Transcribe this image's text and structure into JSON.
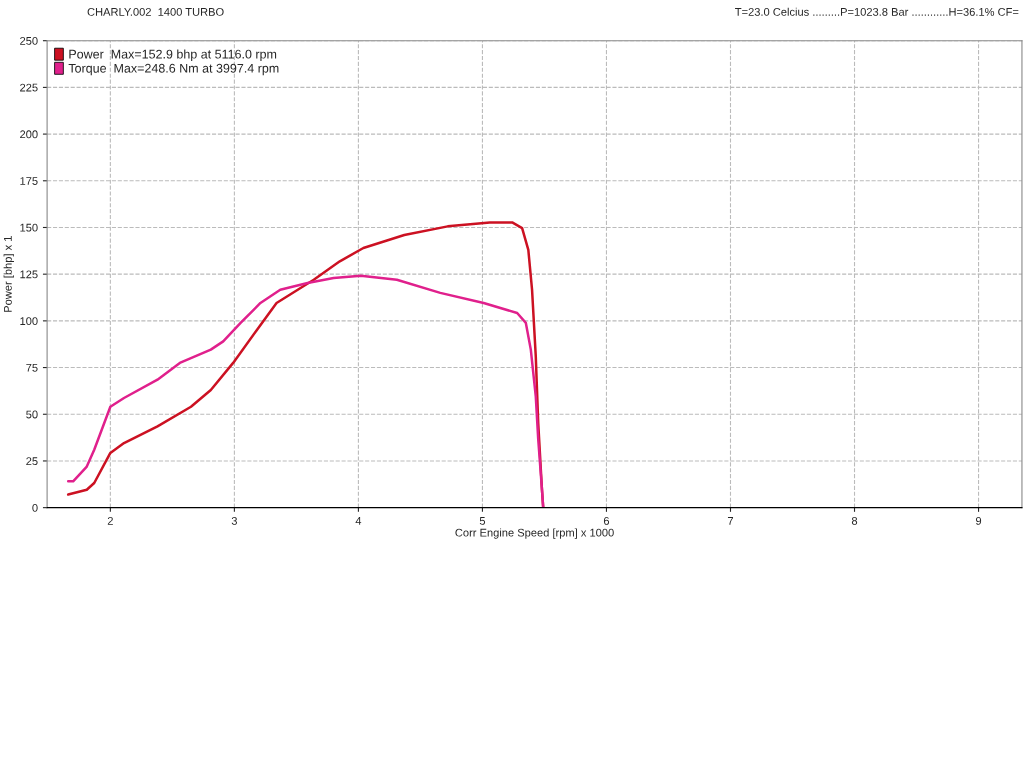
{
  "chart_data": {
    "type": "line",
    "xlabel": "Corr Engine Speed [rpm] x 1000",
    "ylabel": "Power [bhp] x 1",
    "annotations": [
      "CHARLY.002  1400 TURBO",
      "T=23.0 Celcius .........P=1023.8 Bar ............H=36.1% CF="
    ],
    "xlim": [
      1.49,
      9.35
    ],
    "xticks": [
      2,
      3,
      4,
      5,
      6,
      7,
      8,
      9
    ],
    "ylim": [
      0,
      250
    ],
    "yticks": [
      0,
      25,
      50,
      75,
      100,
      125,
      150,
      175,
      200,
      225,
      250
    ],
    "grid": true,
    "legend": "top left",
    "marker": "none",
    "line_style": "solid",
    "series": [
      {
        "name": "Power  Max=152.9 bhp at 5116.0 rpm",
        "color": "#cc1122",
        "x": [
          1.66,
          1.81,
          1.87,
          2.0,
          2.11,
          2.38,
          2.65,
          2.81,
          2.99,
          3.18,
          3.34,
          3.64,
          3.85,
          4.04,
          4.37,
          4.72,
          5.06,
          5.24,
          5.32,
          5.37,
          5.4,
          5.43,
          5.45,
          5.48,
          5.49
        ],
        "values": [
          7.0,
          9.6,
          13.2,
          29.3,
          34.6,
          43.5,
          54,
          63,
          77.5,
          95,
          109.6,
          122,
          131.9,
          139,
          146,
          150.6,
          152.7,
          152.7,
          149.7,
          138,
          116.7,
          81,
          45,
          9.6,
          0
        ]
      },
      {
        "name": "Torque  Max=248.6 Nm at 3997.4 rpm",
        "color": "#e0208c",
        "x": [
          1.66,
          1.7,
          1.81,
          1.87,
          2.0,
          2.11,
          2.38,
          2.56,
          2.81,
          2.91,
          3.05,
          3.21,
          3.37,
          3.59,
          3.8,
          4.02,
          4.31,
          4.66,
          5.01,
          5.28,
          5.35,
          5.39,
          5.43,
          5.45,
          5.48,
          5.49
        ],
        "values": [
          14.1,
          14.1,
          22,
          31,
          54,
          58.7,
          68.5,
          77.5,
          84.6,
          89,
          98.9,
          109.6,
          116.7,
          120.3,
          123,
          124.2,
          122,
          115,
          109.6,
          104.2,
          98.9,
          84.6,
          59.6,
          36.4,
          9.6,
          0
        ]
      }
    ]
  }
}
